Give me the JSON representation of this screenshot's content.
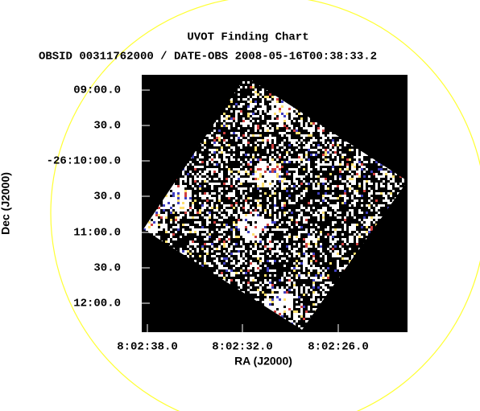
{
  "header": {
    "title": "UVOT Finding Chart",
    "subtitle": "OBSID 00311762000 / DATE-OBS 2008-05-16T00:38:33.2"
  },
  "axes": {
    "x_label": "RA (J2000)",
    "y_label": "Dec (J2000)",
    "x_ticks": [
      "8:02:38.0",
      "8:02:32.0",
      "8:02:26.0"
    ],
    "y_ticks": [
      "09:00.0",
      "30.0",
      "-26:10:00.0",
      "30.0",
      "11:00.0",
      "30.0",
      "12:00.0"
    ]
  }
}
